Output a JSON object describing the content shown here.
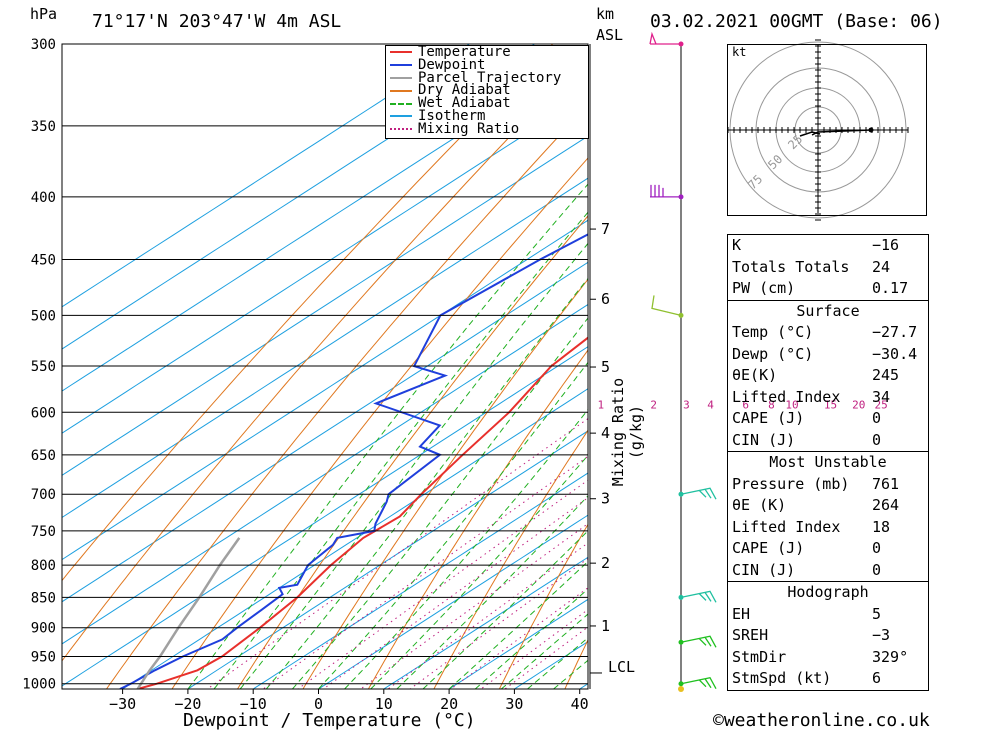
{
  "header": {
    "pressure_unit": "hPa",
    "location": "71°17'N 203°47'W 4m ASL",
    "height_unit_line1": "km",
    "height_unit_line2": "ASL",
    "run": "03.02.2021 00GMT (Base: 06)"
  },
  "axes": {
    "xlabel": "Dewpoint / Temperature (°C)",
    "ylabel_right": "Mixing Ratio (g/kg)",
    "lcl_label": "LCL",
    "hodograph_unit": "kt"
  },
  "legend": [
    {
      "label": "Temperature",
      "color": "#e8302c",
      "style": "solid"
    },
    {
      "label": "Dewpoint",
      "color": "#1f3fdc",
      "style": "solid"
    },
    {
      "label": "Parcel Trajectory",
      "color": "#a0a0a0",
      "style": "solid"
    },
    {
      "label": "Dry Adiabat",
      "color": "#e07820",
      "style": "solid"
    },
    {
      "label": "Wet Adiabat",
      "color": "#20b020",
      "style": "dashed"
    },
    {
      "label": "Isotherm",
      "color": "#1ea0e0",
      "style": "solid"
    },
    {
      "label": "Mixing Ratio",
      "color": "#c02080",
      "style": "dotted"
    }
  ],
  "chart_data": {
    "type": "line",
    "x_ticks": [
      -30,
      -20,
      -10,
      0,
      10,
      20,
      30,
      40
    ],
    "x_tick_labels": [
      "−30",
      "−20",
      "−10",
      "0",
      "10",
      "20",
      "30",
      "40"
    ],
    "pressure_levels": [
      300,
      350,
      400,
      450,
      500,
      550,
      600,
      650,
      700,
      750,
      800,
      850,
      900,
      950,
      1000
    ],
    "km_ticks": [
      1,
      2,
      3,
      4,
      5,
      6,
      7
    ],
    "mixing_ratio_labels": [
      "1",
      "2",
      "3",
      "4",
      "6",
      "8",
      "10",
      "15",
      "20",
      "25"
    ],
    "mixing_ratio_values": [
      1,
      2,
      3,
      4,
      6,
      8,
      10,
      15,
      20,
      25
    ],
    "hodograph_ring_labels": [
      "25",
      "50",
      "75"
    ],
    "series": [
      {
        "name": "Temperature",
        "color": "#e8302c",
        "points": [
          [
            1010,
            -27.7
          ],
          [
            1000,
            -26
          ],
          [
            975,
            -23
          ],
          [
            950,
            -22.5
          ],
          [
            900,
            -23.5
          ],
          [
            850,
            -25
          ],
          [
            800,
            -27.5
          ],
          [
            760,
            -29
          ],
          [
            730,
            -28.5
          ],
          [
            700,
            -30.5
          ],
          [
            650,
            -33.5
          ],
          [
            600,
            -36.5
          ],
          [
            550,
            -41
          ],
          [
            500,
            -43
          ],
          [
            450,
            -47.5
          ],
          [
            420,
            -50.5
          ],
          [
            410,
            -49
          ],
          [
            380,
            -52
          ],
          [
            350,
            -56
          ],
          [
            320,
            -59
          ],
          [
            300,
            -61
          ]
        ]
      },
      {
        "name": "Dewpoint",
        "color": "#1f3fdc",
        "points": [
          [
            1010,
            -30.4
          ],
          [
            1000,
            -30
          ],
          [
            975,
            -29.5
          ],
          [
            950,
            -28.5
          ],
          [
            920,
            -26.5
          ],
          [
            900,
            -27
          ],
          [
            870,
            -27.5
          ],
          [
            845,
            -28
          ],
          [
            835,
            -30
          ],
          [
            830,
            -28
          ],
          [
            800,
            -31
          ],
          [
            770,
            -32
          ],
          [
            760,
            -33
          ],
          [
            750,
            -29
          ],
          [
            740,
            -30.5
          ],
          [
            710,
            -34
          ],
          [
            700,
            -35.5
          ],
          [
            650,
            -37
          ],
          [
            640,
            -42
          ],
          [
            615,
            -44
          ],
          [
            590,
            -59
          ],
          [
            560,
            -55
          ],
          [
            550,
            -62
          ],
          [
            500,
            -70
          ],
          [
            450,
            -68
          ],
          [
            420,
            -66
          ],
          [
            370,
            -80
          ],
          [
            350,
            -76
          ],
          [
            320,
            -76.5
          ],
          [
            300,
            -78
          ]
        ]
      },
      {
        "name": "Parcel Trajectory",
        "color": "#a0a0a0",
        "points": [
          [
            1010,
            -27.7
          ],
          [
            975,
            -30.3
          ],
          [
            950,
            -32
          ],
          [
            900,
            -36
          ],
          [
            850,
            -40
          ],
          [
            800,
            -44.5
          ],
          [
            760,
            -48
          ]
        ]
      }
    ]
  },
  "wind_barbs": [
    {
      "pressure": 300,
      "color": "#e0208c"
    },
    {
      "pressure": 400,
      "color": "#a020c0"
    },
    {
      "pressure": 500,
      "color": "#90c030"
    },
    {
      "pressure": 700,
      "color": "#20c0a0"
    },
    {
      "pressure": 850,
      "color": "#20c0a0"
    },
    {
      "pressure": 925,
      "color": "#20c020"
    },
    {
      "pressure": 1000,
      "color": "#20c020"
    }
  ],
  "indices": {
    "rows": [
      [
        "K",
        "−16"
      ],
      [
        "Totals Totals",
        "24"
      ],
      [
        "PW (cm)",
        "0.17"
      ]
    ],
    "surface_title": "Surface",
    "surface": [
      [
        "Temp (°C)",
        "−27.7"
      ],
      [
        "Dewp (°C)",
        "−30.4"
      ],
      [
        "θE(K)",
        "245"
      ],
      [
        "Lifted Index",
        "34"
      ],
      [
        "CAPE (J)",
        "0"
      ],
      [
        "CIN (J)",
        "0"
      ]
    ],
    "mu_title": "Most Unstable",
    "mu": [
      [
        "Pressure (mb)",
        "761"
      ],
      [
        "θE (K)",
        "264"
      ],
      [
        "Lifted Index",
        "18"
      ],
      [
        "CAPE (J)",
        "0"
      ],
      [
        "CIN (J)",
        "0"
      ]
    ],
    "hodo_title": "Hodograph",
    "hodo": [
      [
        "EH",
        "5"
      ],
      [
        "SREH",
        "−3"
      ],
      [
        "StmDir",
        "329°"
      ],
      [
        "StmSpd (kt)",
        "6"
      ]
    ]
  },
  "footer": {
    "copyright": "©weatheronline.co.uk"
  }
}
